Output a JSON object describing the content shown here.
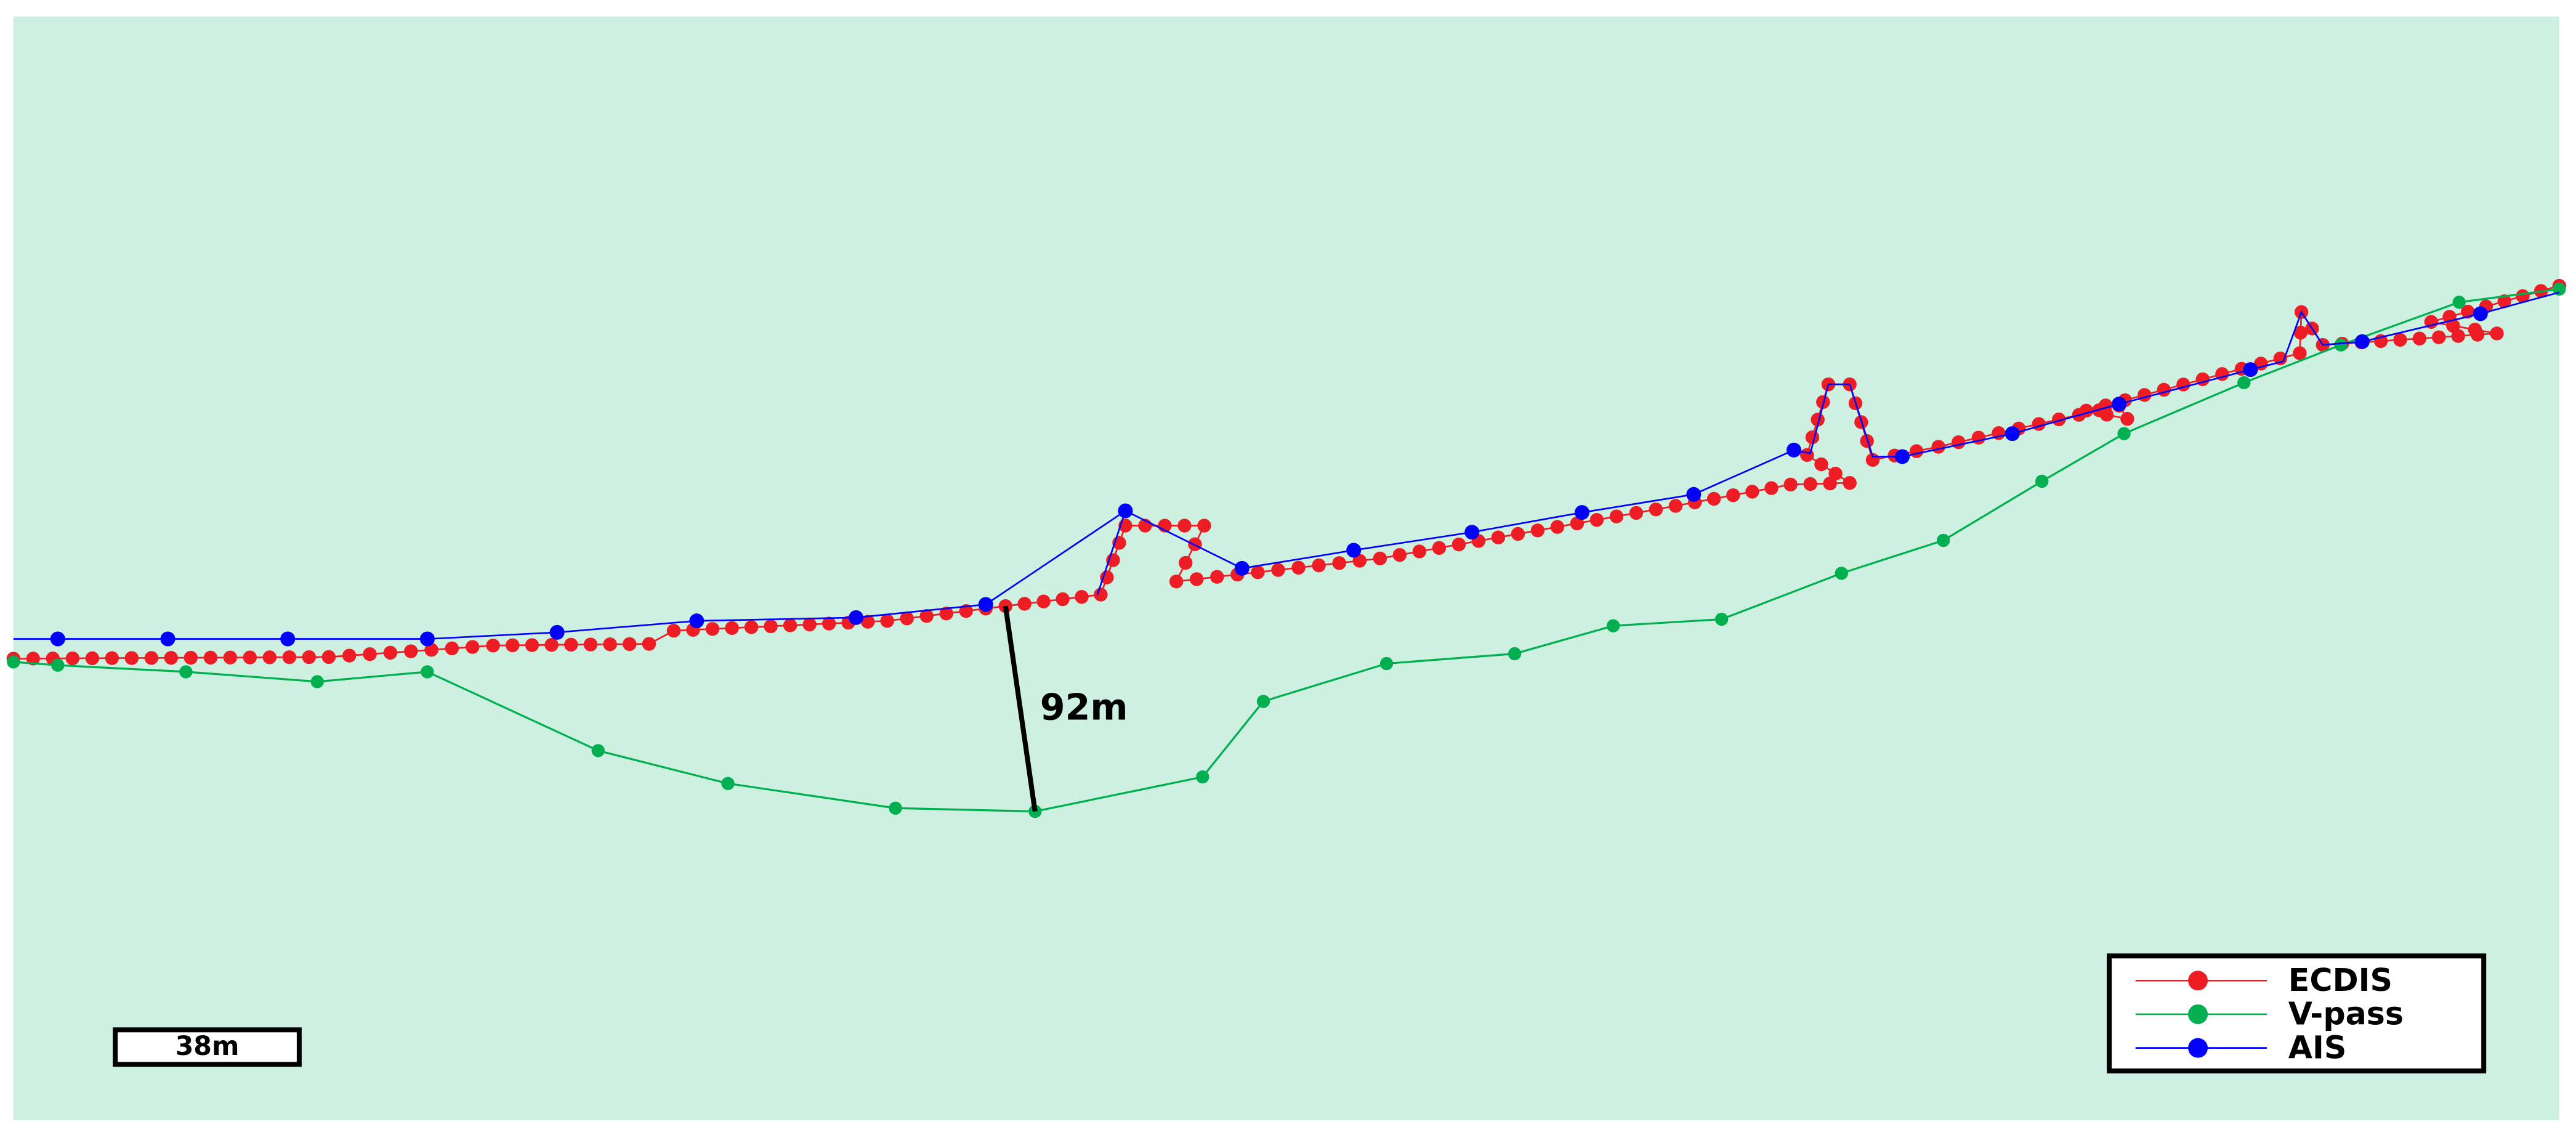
{
  "measurement": {
    "label": "92m"
  },
  "scale_bar": {
    "label": "38m"
  },
  "legend": {
    "entries": [
      {
        "name": "ECDIS",
        "color": "#ee1c25"
      },
      {
        "name": "V-pass",
        "color": "#00b050"
      },
      {
        "name": "AIS",
        "color": "#0000ff"
      }
    ]
  }
}
